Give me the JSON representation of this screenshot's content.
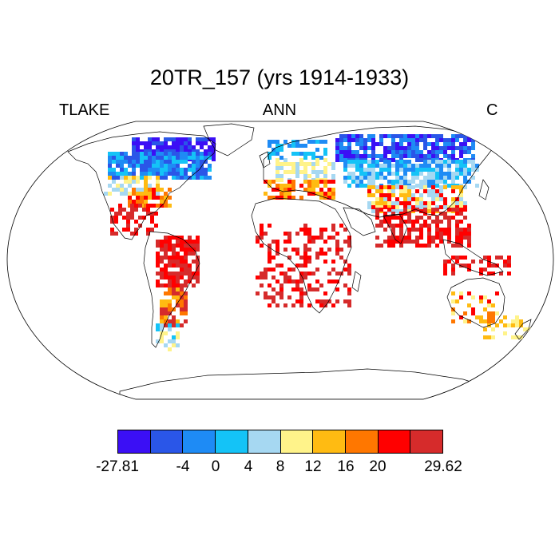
{
  "title": "20TR_157 (yrs 1914-1933)",
  "variable": "TLAKE",
  "season": "ANN",
  "units": "C",
  "colorbar": {
    "colors": [
      "#3b0ff5",
      "#2a56e8",
      "#1e8bf5",
      "#14c3f7",
      "#a6d8f2",
      "#fff38a",
      "#ffbb12",
      "#ff7700",
      "#ff0000",
      "#d62b2b"
    ],
    "tick_labels": [
      "-27.81",
      "-4",
      "0",
      "4",
      "8",
      "12",
      "16",
      "20",
      "29.62"
    ],
    "min": -27.81,
    "max": 29.62
  }
}
